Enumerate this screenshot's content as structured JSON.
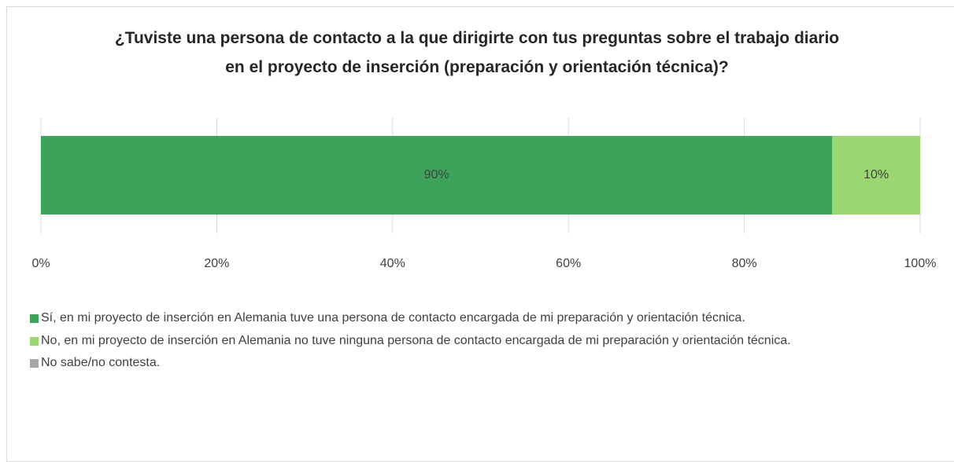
{
  "chart_data": {
    "type": "stacked_bar_horizontal",
    "title": "¿Tuviste una persona de contacto a la que dirigirte con tus preguntas sobre el trabajo diario en el proyecto de inserción (preparación y orientación técnica)?",
    "categories": [
      null
    ],
    "series": [
      {
        "name": "Sí, en mi proyecto de inserción en Alemania tuve una persona de contacto encargada de mi preparación y orientación técnica.",
        "color": "#3da35a",
        "values": [
          90
        ],
        "value_labels": [
          "90%"
        ]
      },
      {
        "name": "No, en mi proyecto de inserción en Alemania no tuve ninguna persona de contacto encargada de mi preparación y orientación técnica.",
        "color": "#9bd770",
        "values": [
          10
        ],
        "value_labels": [
          "10%"
        ]
      },
      {
        "name": "No sabe/no contesta.",
        "color": "#a6a6a6",
        "values": [
          0
        ]
      }
    ],
    "xlim": [
      0,
      100
    ],
    "xticks": [
      {
        "value": 0,
        "label": "0%"
      },
      {
        "value": 20,
        "label": "20%"
      },
      {
        "value": 40,
        "label": "40%"
      },
      {
        "value": 60,
        "label": "60%"
      },
      {
        "value": 80,
        "label": "80%"
      },
      {
        "value": 100,
        "label": "100%"
      }
    ],
    "grid": true
  }
}
